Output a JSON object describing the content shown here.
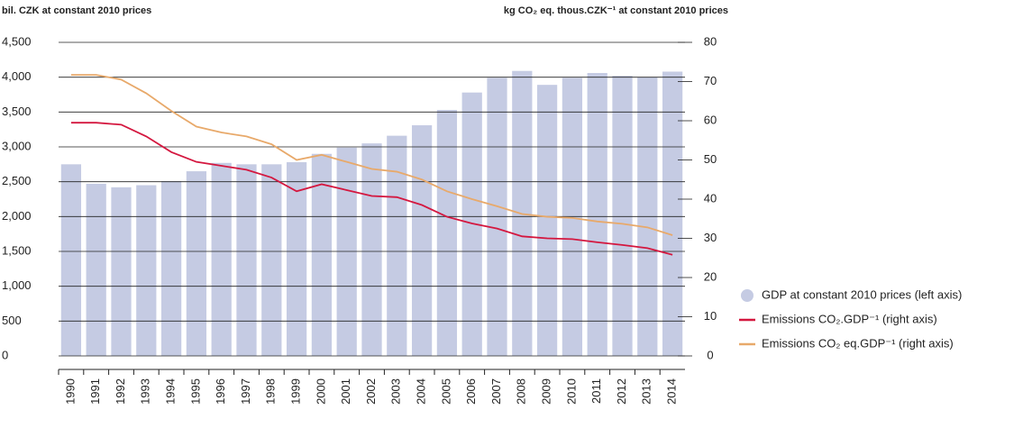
{
  "chart_data": {
    "type": "bar_line",
    "y_axis_label": "bil. CZK at constant 2010 prices",
    "y2_axis_label": "kg CO₂ eq. thous.CZK⁻¹ at constant 2010 prices",
    "categories": [
      "1990",
      "1991",
      "1992",
      "1993",
      "1994",
      "1995",
      "1996",
      "1997",
      "1998",
      "1999",
      "2000",
      "2001",
      "2002",
      "2003",
      "2004",
      "2005",
      "2006",
      "2007",
      "2008",
      "2009",
      "2010",
      "2011",
      "2012",
      "2013",
      "2014"
    ],
    "series": [
      {
        "name": "GDP at constant 2010 prices (left axis)",
        "type": "bar",
        "color": "#c5cbe3",
        "values": [
          2750,
          2470,
          2420,
          2450,
          2510,
          2650,
          2770,
          2750,
          2750,
          2780,
          2900,
          2990,
          3050,
          3160,
          3310,
          3530,
          3780,
          3990,
          4090,
          3890,
          3990,
          4060,
          4020,
          4000,
          4080
        ]
      },
      {
        "name": "Emissions CO₂.GDP⁻¹ (right axis)",
        "type": "line",
        "axis": "y2",
        "color": "#d4173f",
        "values": [
          59.5,
          59.5,
          59,
          56,
          52,
          49.5,
          48.5,
          47.5,
          45.5,
          42,
          43.8,
          42.3,
          40.8,
          40.5,
          38.5,
          35.5,
          33.8,
          32.5,
          30.5,
          30,
          29.8,
          29,
          28.3,
          27.5,
          25.8
        ]
      },
      {
        "name": "Emissions CO₂ eq.GDP⁻¹ (right axis)",
        "type": "line",
        "axis": "y2",
        "color": "#e8a96a",
        "values": [
          71.7,
          71.7,
          70.5,
          67,
          62.5,
          58.5,
          57,
          56,
          54,
          50,
          51.3,
          49.5,
          47.7,
          47,
          45,
          42,
          40,
          38.2,
          36.2,
          35.5,
          35.2,
          34.3,
          33.7,
          32.8,
          30.8
        ]
      }
    ],
    "ylim": [
      0,
      4500
    ],
    "yticks": [
      0,
      500,
      {
        "value": 1000,
        "label": "1,000"
      },
      {
        "value": 1500,
        "label": "1,500"
      },
      {
        "value": 2000,
        "label": "2,000"
      },
      {
        "value": 2500,
        "label": "2,500"
      },
      {
        "value": 3000,
        "label": "3,000"
      },
      {
        "value": 3500,
        "label": "3,500"
      },
      {
        "value": 4000,
        "label": "4,000"
      },
      {
        "value": 4500,
        "label": "4,500"
      }
    ],
    "y2lim": [
      0,
      80
    ],
    "y2ticks": [
      0,
      10,
      20,
      30,
      40,
      50,
      60,
      70,
      80
    ],
    "grid": true
  }
}
